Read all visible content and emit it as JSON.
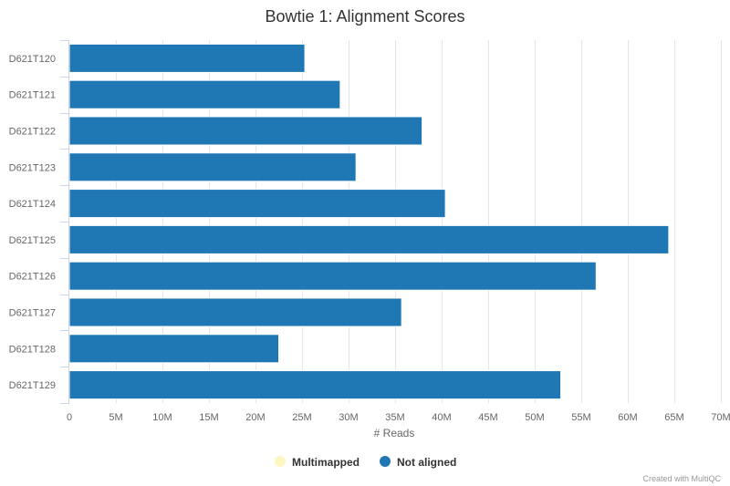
{
  "chart_data": {
    "type": "bar",
    "orientation": "horizontal",
    "stacked": true,
    "title": "Bowtie 1: Alignment Scores",
    "xlabel": "# Reads",
    "ylabel": "",
    "categories": [
      "D621T120",
      "D621T121",
      "D621T122",
      "D621T123",
      "D621T124",
      "D621T125",
      "D621T126",
      "D621T127",
      "D621T128",
      "D621T129"
    ],
    "series": [
      {
        "name": "Multimapped",
        "color": "#fef7c1",
        "values": [
          0,
          0,
          0,
          0,
          0,
          0,
          0,
          0,
          0,
          0
        ]
      },
      {
        "name": "Not aligned",
        "color": "#1f78b4",
        "values": [
          25.3,
          29.1,
          37.9,
          30.8,
          40.4,
          64.4,
          56.6,
          35.7,
          22.5,
          52.8
        ]
      }
    ],
    "value_unit": "M",
    "xlim": [
      0,
      70
    ],
    "xticks": [
      0,
      5,
      10,
      15,
      20,
      25,
      30,
      35,
      40,
      45,
      50,
      55,
      60,
      65,
      70
    ],
    "xtick_labels": [
      "0",
      "5M",
      "10M",
      "15M",
      "20M",
      "25M",
      "30M",
      "35M",
      "40M",
      "45M",
      "50M",
      "55M",
      "60M",
      "65M",
      "70M"
    ],
    "grid": true,
    "legend_position": "bottom-center"
  },
  "credits": "Created with MultiQC"
}
